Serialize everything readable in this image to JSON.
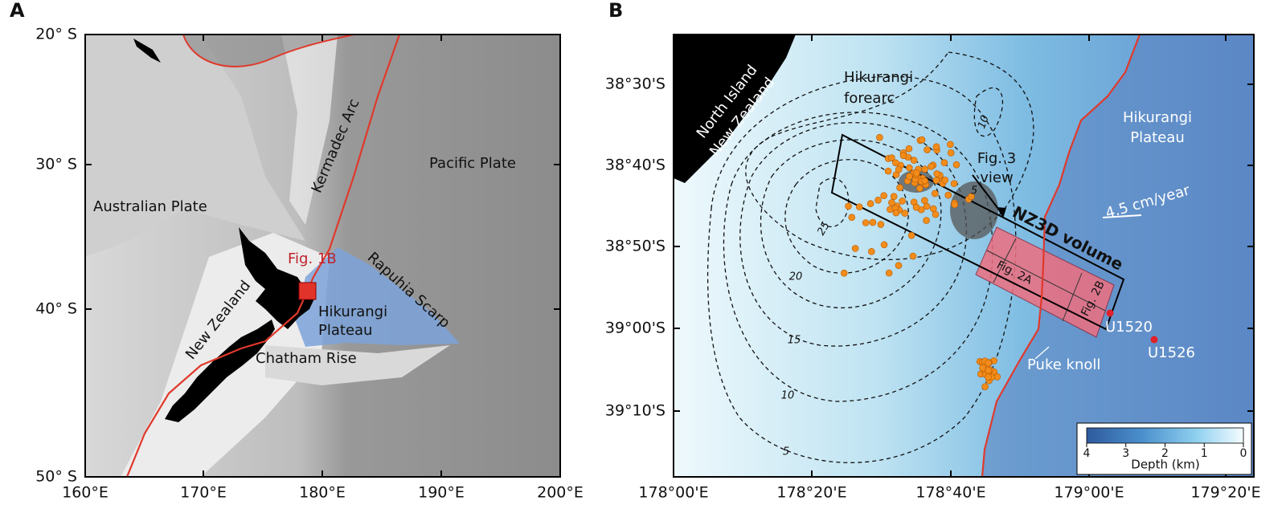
{
  "panel_a": {
    "label": "A",
    "lat_ticks": [
      "20° S",
      "30° S",
      "40° S",
      "50° S"
    ],
    "lon_ticks": [
      "160°E",
      "170°E",
      "180°E",
      "190°E",
      "200°E"
    ],
    "labels": {
      "kermadec_arc": "Kermadec Arc",
      "pacific_plate": "Pacific Plate",
      "australian_plate": "Australian Plate",
      "fig_1b": "Fig. 1B",
      "rapuhia_scarp": "Rapuhia Scarp",
      "new_zealand": "New Zealand",
      "hikurangi_plateau": [
        "Hikurangi",
        "Plateau"
      ],
      "chatham_rise": "Chatham Rise"
    }
  },
  "panel_b": {
    "label": "B",
    "lat_ticks": [
      "38°30'S",
      "38°40'S",
      "38°50'S",
      "39°00'S",
      "39°10'S"
    ],
    "lon_ticks": [
      "178°00'E",
      "178°20'E",
      "178°40'E",
      "179°00'E",
      "179°20'E"
    ],
    "labels": {
      "north_island": [
        "North Island",
        "New Zealand"
      ],
      "hikurangi_forearc": [
        "Hikurangi",
        "forearc"
      ],
      "hikurangi_plateau": [
        "Hikurangi",
        "Plateau"
      ],
      "fig_3_view": [
        "Fig. 3",
        "view"
      ],
      "plate_rate": "4.5 cm/year",
      "nz3d_volume": "NZ3D volume",
      "fig_2a": "Fig. 2A",
      "fig_2b": "Fig. 2B",
      "u1520": "U1520",
      "u1526": "U1526",
      "puke_knoll": "Puke knoll"
    },
    "contour_labels": [
      "10",
      "5",
      "25",
      "20",
      "15",
      "10",
      "5"
    ],
    "colorbar": {
      "ticks": [
        "4",
        "3",
        "2",
        "1",
        "0"
      ],
      "title": "Depth (km)"
    }
  }
}
